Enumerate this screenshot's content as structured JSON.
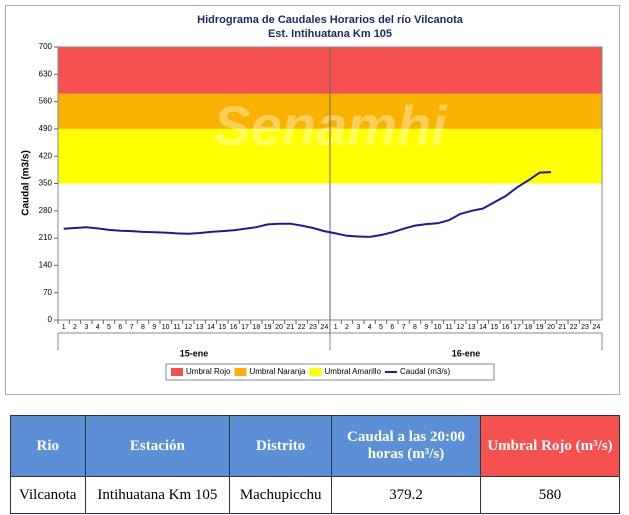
{
  "chart_data": {
    "type": "line",
    "title": "Hidrograma de Caudales Horarios del río Vilcanota",
    "subtitle": "Est. Intihuatana Km 105",
    "watermark": "Senamhi",
    "y_label": "Caudal (m3/s)",
    "categories": [
      "1",
      "2",
      "3",
      "4",
      "5",
      "6",
      "7",
      "8",
      "9",
      "10",
      "11",
      "12",
      "13",
      "14",
      "15",
      "16",
      "17",
      "18",
      "19",
      "20",
      "21",
      "22",
      "23",
      "24",
      "1",
      "2",
      "3",
      "4",
      "5",
      "6",
      "7",
      "8",
      "9",
      "10",
      "11",
      "12",
      "13",
      "14",
      "15",
      "16",
      "17",
      "18",
      "19",
      "20",
      "21",
      "22",
      "23",
      "24"
    ],
    "groups": [
      "15-ene",
      "16-ene"
    ],
    "thresholds": [
      {
        "name": "Umbral Rojo",
        "color": "#f4514f",
        "from": 580,
        "to": 700
      },
      {
        "name": "Umbral Naranja",
        "color": "#f9b200",
        "from": 490,
        "to": 580
      },
      {
        "name": "Umbral Amarillo",
        "color": "#ffff00",
        "from": 350,
        "to": 490
      }
    ],
    "series": [
      {
        "name": "Caudal (m3/s)",
        "color": "#1a1aa0",
        "values": [
          234,
          236,
          238,
          235,
          231,
          229,
          228,
          226,
          225,
          224,
          222,
          221,
          223,
          226,
          228,
          230,
          234,
          238,
          245,
          247,
          247,
          242,
          236,
          228,
          222,
          216,
          214,
          213,
          218,
          225,
          234,
          242,
          246,
          248,
          256,
          272,
          280,
          286,
          302,
          318,
          340,
          358,
          378,
          379.2,
          null,
          null,
          null,
          null
        ]
      }
    ],
    "ylim": [
      0,
      700
    ],
    "yticks": [
      0,
      70,
      140,
      210,
      280,
      350,
      420,
      490,
      560,
      630,
      700
    ]
  },
  "table": {
    "headers": [
      "Rio",
      "Estación",
      "Distrito",
      "Caudal a las 20:00 horas (m³/s)",
      "Umbral Rojo (m³/s)"
    ],
    "rows": [
      [
        "Vilcanota",
        "Intihuatana Km 105",
        "Machupicchu",
        "379.2",
        "580"
      ]
    ]
  }
}
